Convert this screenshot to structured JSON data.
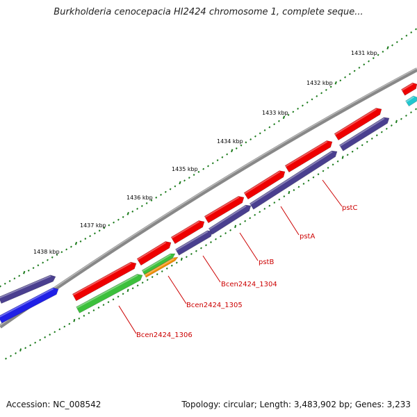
{
  "title": "Burkholderia cenocepacia HI2424 chromosome 1, complete seque...",
  "footer": {
    "accession": "Accession: NC_008542",
    "summary": "Topology: circular; Length: 3,483,902 bp; Genes: 3,233"
  },
  "ticks": [
    "1431 kbp",
    "1432 kbp",
    "1433 kbp",
    "1434 kbp",
    "1435 kbp",
    "1436 kbp",
    "1437 kbp",
    "1438 kbp"
  ],
  "gene_labels": [
    "pstC",
    "pstA",
    "pstB",
    "Bcen2424_1304",
    "Bcen2424_1305",
    "Bcen2424_1306"
  ],
  "colors": {
    "red": "#ee0000",
    "navy": "#4a3f8f",
    "green": "#3cc03c",
    "orange": "#f08c00",
    "blue": "#1f1fe6",
    "cyan": "#20c8d0",
    "backbone": "#808080",
    "tick": "#1a7a1a",
    "label": "#cc0000"
  }
}
